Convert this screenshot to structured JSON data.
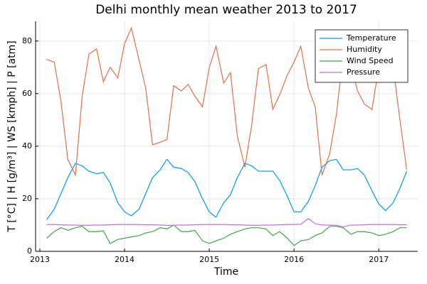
{
  "chart_data": {
    "type": "line",
    "title": "Delhi monthly mean weather 2013 to 2017",
    "x_label": "Time",
    "y_label": "T [°C] | H [g/m³] | WS [kmph] | P [atm]",
    "x": [
      2013.08,
      2013.17,
      2013.25,
      2013.33,
      2013.42,
      2013.5,
      2013.58,
      2013.67,
      2013.75,
      2013.83,
      2013.92,
      2014.0,
      2014.08,
      2014.17,
      2014.25,
      2014.33,
      2014.42,
      2014.5,
      2014.58,
      2014.67,
      2014.75,
      2014.83,
      2014.92,
      2015.0,
      2015.08,
      2015.17,
      2015.25,
      2015.33,
      2015.42,
      2015.5,
      2015.58,
      2015.67,
      2015.75,
      2015.83,
      2015.92,
      2016.0,
      2016.08,
      2016.17,
      2016.25,
      2016.33,
      2016.42,
      2016.5,
      2016.58,
      2016.67,
      2016.75,
      2016.83,
      2016.92,
      2017.0,
      2017.08,
      2017.17,
      2017.25,
      2017.33
    ],
    "series": [
      {
        "name": "Temperature",
        "color": "#009af9",
        "values": [
          12,
          16,
          22,
          28,
          33.5,
          32.5,
          30.5,
          29.5,
          30,
          26,
          18.5,
          15,
          13.5,
          16,
          22,
          28,
          31,
          35,
          32,
          31.5,
          30,
          26.5,
          20,
          15,
          13,
          18.5,
          21.5,
          28,
          33.5,
          32.5,
          30.5,
          30.5,
          30.5,
          27,
          21,
          15,
          15,
          19,
          25,
          32,
          34.5,
          35,
          31,
          31,
          31.5,
          29,
          23,
          18,
          15.5,
          18.5,
          24,
          30.5
        ]
      },
      {
        "name": "Humidity",
        "color": "#e26f46",
        "values": [
          73,
          72,
          57,
          35,
          29,
          59,
          75,
          77,
          64.5,
          70,
          66,
          79,
          85,
          73,
          62,
          40.5,
          41.5,
          42.5,
          63,
          61,
          63.5,
          59,
          55,
          70,
          78,
          64,
          68,
          44,
          32,
          48,
          69.5,
          71,
          54,
          59.5,
          67,
          72,
          78,
          62,
          55,
          29,
          37,
          52,
          75,
          71,
          61,
          56,
          54,
          70,
          72,
          70,
          50,
          31
        ]
      },
      {
        "name": "Wind Speed",
        "color": "#3da44d",
        "values": [
          5,
          7.5,
          9,
          8,
          9,
          9.5,
          7.5,
          7.5,
          7.8,
          3,
          4.5,
          5,
          5.5,
          6,
          7,
          7.5,
          9,
          8.5,
          10,
          7.5,
          7.5,
          8,
          4,
          3,
          4,
          5,
          6.5,
          7.5,
          8.5,
          9,
          9,
          8.5,
          6,
          7.5,
          5,
          2.2,
          4,
          4.5,
          6,
          7,
          9.5,
          9.5,
          9,
          6.5,
          7.5,
          7.5,
          7,
          6,
          6.5,
          7.5,
          9,
          9
        ]
      },
      {
        "name": "Pressure",
        "color": "#c271d2",
        "values": [
          10.2,
          10.2,
          10.1,
          10,
          10,
          9.9,
          9.9,
          10,
          10,
          10.1,
          10.2,
          10.2,
          10.2,
          10.2,
          10.1,
          10.1,
          10,
          9.9,
          9.9,
          10,
          10,
          10.1,
          10.2,
          10.2,
          10.2,
          10.2,
          10.1,
          10.1,
          10,
          9.9,
          9.9,
          10,
          10,
          10.1,
          10.2,
          10.2,
          10.3,
          12.5,
          10.5,
          10,
          10,
          9.9,
          9.3,
          10,
          10,
          10.1,
          10.2,
          10.2,
          10.2,
          10.2,
          10.1,
          10.1
        ]
      }
    ],
    "xlim": [
      2012.95,
      2017.46
    ],
    "xticks": [
      2013,
      2014,
      2015,
      2016,
      2017
    ],
    "ylim": [
      0,
      87.5
    ],
    "yticks": [
      0,
      20,
      40,
      60,
      80
    ],
    "grid": true,
    "legend": "top-right"
  }
}
